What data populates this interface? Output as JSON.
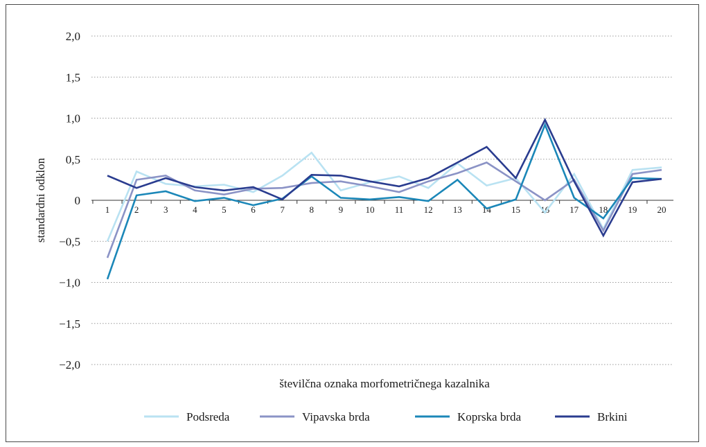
{
  "chart_data": {
    "type": "line",
    "xlabel": "številčna oznaka morfometričnega kazalnika",
    "ylabel": "standardni odklon",
    "x": [
      1,
      2,
      3,
      4,
      5,
      6,
      7,
      8,
      9,
      10,
      11,
      12,
      13,
      14,
      15,
      16,
      17,
      18,
      19,
      20
    ],
    "x_tick_labels": [
      "1",
      "2",
      "3",
      "4",
      "5",
      "6",
      "7",
      "8",
      "9",
      "10",
      "11",
      "12",
      "13",
      "14",
      "15",
      "16",
      "17",
      "18",
      "19",
      "20"
    ],
    "y_ticks": [
      2.0,
      1.5,
      1.0,
      0.5,
      0,
      -0.5,
      -1.0,
      -1.5,
      -2.0
    ],
    "y_tick_labels": [
      "2,0",
      "1,5",
      "1,0",
      "0,5",
      "0",
      "−0,5",
      "−1,0",
      "−1,5",
      "−2,0"
    ],
    "ylim": [
      -2.0,
      2.0
    ],
    "grid": "horizontal dotted",
    "legend_position": "bottom",
    "series": [
      {
        "name": "Podsreda",
        "color": "#b9e2f2",
        "values": [
          -0.5,
          0.35,
          0.2,
          0.17,
          0.19,
          0.1,
          0.3,
          0.58,
          0.12,
          0.22,
          0.29,
          0.15,
          0.45,
          0.18,
          0.27,
          -0.15,
          0.32,
          -0.35,
          0.37,
          0.4
        ]
      },
      {
        "name": "Vipavska brda",
        "color": "#8b93c6",
        "values": [
          -0.7,
          0.25,
          0.3,
          0.12,
          0.07,
          0.14,
          0.15,
          0.21,
          0.23,
          0.17,
          0.1,
          0.23,
          0.33,
          0.46,
          0.23,
          0.0,
          0.25,
          -0.37,
          0.32,
          0.37
        ]
      },
      {
        "name": "Koprska brda",
        "color": "#1b87b8",
        "values": [
          -0.96,
          0.06,
          0.11,
          -0.01,
          0.03,
          -0.06,
          0.02,
          0.29,
          0.03,
          0.01,
          0.04,
          -0.01,
          0.25,
          -0.1,
          0.01,
          0.92,
          0.03,
          -0.22,
          0.27,
          0.26
        ]
      },
      {
        "name": "Brkini",
        "color": "#2a3c8f",
        "values": [
          0.3,
          0.15,
          0.27,
          0.16,
          0.12,
          0.16,
          0.01,
          0.31,
          0.3,
          0.23,
          0.17,
          0.27,
          0.46,
          0.65,
          0.27,
          0.98,
          0.23,
          -0.43,
          0.22,
          0.26
        ]
      }
    ]
  }
}
